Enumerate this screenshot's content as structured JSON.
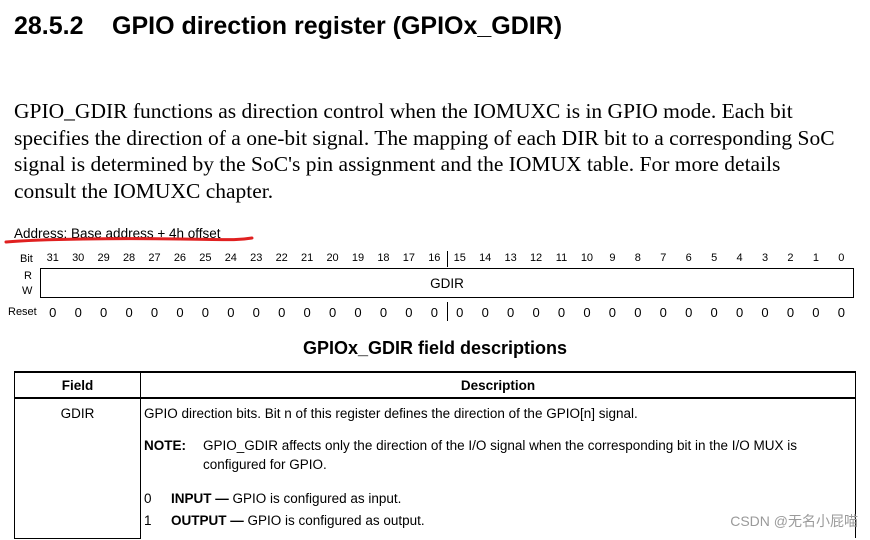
{
  "section": {
    "number": "28.5.2",
    "title": "GPIO direction register (GPIOx_GDIR)"
  },
  "intro": "GPIO_GDIR functions as direction control when the IOMUXC is in GPIO mode. Each bit specifies the direction of a one-bit signal. The mapping of each DIR bit to a corresponding SoC signal is determined by the SoC's pin assignment and the IOMUX table. For more details consult the IOMUXC chapter.",
  "address": "Address: Base address + 4h offset",
  "annotation": {
    "underline_color": "#e02020"
  },
  "register": {
    "bit_label": "Bit",
    "r_label": "R",
    "w_label": "W",
    "reset_label": "Reset",
    "field_name": "GDIR",
    "bits": [
      "31",
      "30",
      "29",
      "28",
      "27",
      "26",
      "25",
      "24",
      "23",
      "22",
      "21",
      "20",
      "19",
      "18",
      "17",
      "16",
      "15",
      "14",
      "13",
      "12",
      "11",
      "10",
      "9",
      "8",
      "7",
      "6",
      "5",
      "4",
      "3",
      "2",
      "1",
      "0"
    ],
    "reset_values": [
      "0",
      "0",
      "0",
      "0",
      "0",
      "0",
      "0",
      "0",
      "0",
      "0",
      "0",
      "0",
      "0",
      "0",
      "0",
      "0",
      "0",
      "0",
      "0",
      "0",
      "0",
      "0",
      "0",
      "0",
      "0",
      "0",
      "0",
      "0",
      "0",
      "0",
      "0",
      "0"
    ]
  },
  "field_table": {
    "title": "GPIOx_GDIR field descriptions",
    "headers": {
      "field": "Field",
      "description": "Description"
    },
    "row": {
      "field": "GDIR",
      "description": "GPIO direction bits. Bit n of this register defines the direction of the GPIO[n] signal.",
      "note_label": "NOTE:",
      "note_text": "GPIO_GDIR affects only the direction of the I/O signal when the corresponding bit in the I/O MUX is configured for GPIO.",
      "options": [
        {
          "value": "0",
          "name": "INPUT —",
          "text": "GPIO is configured as input."
        },
        {
          "value": "1",
          "name": "OUTPUT —",
          "text": "GPIO is configured as output."
        }
      ]
    }
  },
  "watermark": "CSDN @无名小屁喵"
}
